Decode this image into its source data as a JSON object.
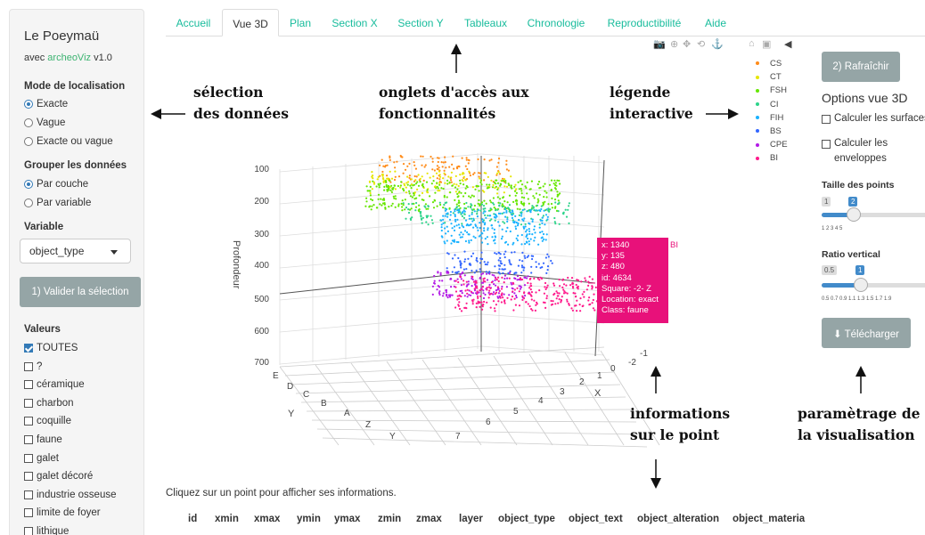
{
  "sidebar": {
    "title": "Le Poeymaü",
    "subtitle_prefix": "avec ",
    "subtitle_link": "archeoViz",
    "subtitle_version": " v1.0",
    "mode_label": "Mode de localisation",
    "mode_options": [
      "Exacte",
      "Vague",
      "Exacte ou vague"
    ],
    "group_label": "Grouper les données",
    "group_options": [
      "Par couche",
      "Par variable"
    ],
    "variable_label": "Variable",
    "variable_value": "object_type",
    "validate_button": "1) Valider la sélection",
    "values_label": "Valeurs",
    "values": [
      "TOUTES",
      "?",
      "céramique",
      "charbon",
      "coquille",
      "faune",
      "galet",
      "galet décoré",
      "industrie osseuse",
      "limite de foyer",
      "lithique"
    ]
  },
  "tabs": [
    "Accueil",
    "Vue 3D",
    "Plan",
    "Section X",
    "Section Y",
    "Tableaux",
    "Chronologie",
    "Reproductibilité",
    "Aide"
  ],
  "plot": {
    "z_axis_title": "Profondeur",
    "z_ticks": [
      "100",
      "200",
      "300",
      "400",
      "500",
      "600",
      "700"
    ],
    "y_axis_title": "Y",
    "y_ticks": [
      "E",
      "D",
      "C",
      "B",
      "A",
      "Z",
      "Y"
    ],
    "x_axis_title": "X",
    "x_ticks": [
      "-2",
      "-1",
      "0",
      "1",
      "2",
      "3",
      "4",
      "5",
      "6",
      "7"
    ],
    "legend": [
      {
        "name": "CS",
        "color": "#ff8c1a"
      },
      {
        "name": "CT",
        "color": "#e6e600"
      },
      {
        "name": "FSH",
        "color": "#66e600"
      },
      {
        "name": "CI",
        "color": "#2ed48b"
      },
      {
        "name": "FIH",
        "color": "#1ab2ff"
      },
      {
        "name": "BS",
        "color": "#3366ff"
      },
      {
        "name": "CPE",
        "color": "#b31ae6"
      },
      {
        "name": "BI",
        "color": "#ff1a8c"
      }
    ],
    "tooltip": [
      "x: 1340",
      "y: 135",
      "z: 480",
      "id: 4634",
      "Square: -2- Z",
      "Location: exact",
      "Class: faune"
    ],
    "tooltip_series": "BI"
  },
  "right_panel": {
    "refresh_button": "2) Rafraîchir",
    "options_title": "Options vue 3D",
    "surfaces_label": "Calculer les surfaces",
    "envelopes_label_1": "Calculer les",
    "envelopes_label_2": "enveloppes",
    "point_size_label": "Taille des points",
    "point_size_min": "1",
    "point_size_value": "2",
    "point_size_ticks": "1        2        3        4        5",
    "ratio_label": "Ratio vertical",
    "ratio_min": "0.5",
    "ratio_value": "1",
    "ratio_ticks": "0.5 0.7 0.9 1.1 1.3 1.5 1.7 1.9",
    "download_button": "Télécharger"
  },
  "annotations": {
    "selection_1": "sélection",
    "selection_2": "des données",
    "tabs_1": "onglets d'accès aux",
    "tabs_2": "fonctionnalités",
    "legend_1": "légende",
    "legend_2": "interactive",
    "info_1": "informations",
    "info_2": "sur le point",
    "params_1": "paramètrage de",
    "params_2": "la visualisation"
  },
  "footer": {
    "hint": "Cliquez sur un point pour afficher ses informations.",
    "columns": [
      "id",
      "xmin",
      "xmax",
      "ymin",
      "ymax",
      "zmin",
      "zmax",
      "layer",
      "object_type",
      "object_text",
      "object_alteration",
      "object_materia"
    ]
  }
}
